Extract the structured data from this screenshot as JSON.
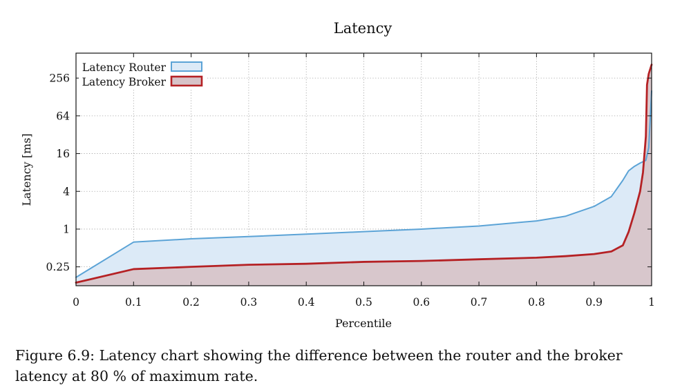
{
  "chart_data": {
    "type": "area",
    "title": "Latency",
    "xlabel": "Percentile",
    "ylabel": "Latency [ms]",
    "xlim": [
      0,
      1
    ],
    "ylim": [
      0.125,
      640
    ],
    "y_scale": "log2",
    "x_ticks": [
      0,
      0.1,
      0.2,
      0.3,
      0.4,
      0.5,
      0.6,
      0.7,
      0.8,
      0.9,
      1
    ],
    "x_tick_labels": [
      "0",
      "0.1",
      "0.2",
      "0.3",
      "0.4",
      "0.5",
      "0.6",
      "0.7",
      "0.8",
      "0.9",
      "1"
    ],
    "y_ticks": [
      0.25,
      1,
      4,
      16,
      64,
      256
    ],
    "y_tick_labels": [
      "0.25",
      "1",
      "4",
      "16",
      "64",
      "256"
    ],
    "grid": true,
    "legend_position": "top-left",
    "series": [
      {
        "name": "Latency Router",
        "line_color": "#5ba3d6",
        "fill_color": "#dceaf7",
        "x": [
          0,
          0.1,
          0.2,
          0.3,
          0.4,
          0.5,
          0.6,
          0.7,
          0.8,
          0.85,
          0.9,
          0.93,
          0.95,
          0.96,
          0.97,
          0.98,
          0.99,
          0.995,
          1.0
        ],
        "values": [
          0.17,
          0.62,
          0.7,
          0.76,
          0.83,
          0.91,
          1.0,
          1.12,
          1.35,
          1.6,
          2.3,
          3.3,
          6.0,
          8.5,
          10.0,
          11.3,
          12.5,
          20,
          160
        ]
      },
      {
        "name": "Latency Broker",
        "line_color": "#b52124",
        "fill_color": "#d7c3c8",
        "x": [
          0,
          0.1,
          0.2,
          0.3,
          0.4,
          0.5,
          0.6,
          0.7,
          0.8,
          0.85,
          0.9,
          0.93,
          0.95,
          0.96,
          0.97,
          0.98,
          0.985,
          0.99,
          0.992,
          0.995,
          1.0
        ],
        "values": [
          0.14,
          0.23,
          0.25,
          0.27,
          0.28,
          0.3,
          0.31,
          0.33,
          0.35,
          0.37,
          0.4,
          0.44,
          0.55,
          0.9,
          1.8,
          4.0,
          8.0,
          30,
          200,
          300,
          420
        ]
      }
    ]
  },
  "caption": {
    "text": "Figure 6.9: Latency chart showing the difference between the router and the broker latency at 80 % of maximum rate."
  }
}
